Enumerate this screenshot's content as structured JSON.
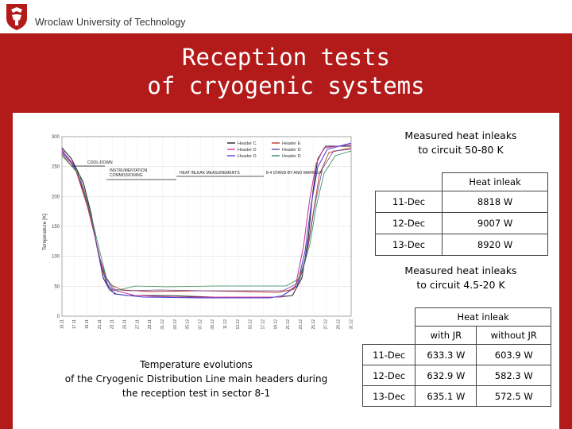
{
  "header": {
    "university": "Wroclaw University of Technology"
  },
  "title_lines": [
    "Reception tests",
    "of cryogenic systems"
  ],
  "chart": {
    "ylabel": "Temperature [K]",
    "yticks": [
      "300",
      "250",
      "200",
      "150",
      "100",
      "50",
      "0"
    ],
    "xticks": [
      "15.11",
      "17.11",
      "19.11",
      "21.11",
      "23.11",
      "25.11",
      "27.11",
      "29.11",
      "01.12",
      "03.12",
      "05.12",
      "07.12",
      "09.12",
      "11.12",
      "13.12",
      "15.12",
      "17.12",
      "19.12",
      "21.12",
      "23.12",
      "25.12",
      "27.12",
      "29.12",
      "31.12"
    ],
    "legend": [
      "Header C",
      "Header D",
      "Header D",
      "Header E",
      "Header D",
      "Header D"
    ],
    "phases": [
      "COOL-DOWN",
      "INSTRUMENTATION COMMISSIONING",
      "HEAT INLEAK MEASUREMENTS",
      "8-4 STAND-BY AND WARM-UP"
    ],
    "colors": {
      "c": "#222222",
      "d1": "#d23b9a",
      "d2": "#4a4ad8",
      "e": "#c0392b",
      "f": "#6b4a9a",
      "g": "#2e8b57"
    }
  },
  "caption_lines": [
    "Temperature evolutions",
    "of the Cryogenic Distribution Line main headers during",
    "the reception test in sector 8-1"
  ],
  "table1": {
    "title_lines": [
      "Measured heat inleaks",
      "to circuit 50-80 K"
    ],
    "header": "Heat inleak",
    "rows": [
      [
        "11-Dec",
        "8818 W"
      ],
      [
        "12-Dec",
        "9007 W"
      ],
      [
        "13-Dec",
        "8920 W"
      ]
    ]
  },
  "table2": {
    "title_lines": [
      "Measured heat inleaks",
      "to circuit 4.5-20 K"
    ],
    "header": "Heat inleak",
    "cols": [
      "with JR",
      "without JR"
    ],
    "rows": [
      [
        "11-Dec",
        "633.3 W",
        "603.9 W"
      ],
      [
        "12-Dec",
        "632.9 W",
        "582.3 W"
      ],
      [
        "13-Dec",
        "635.1 W",
        "572.5 W"
      ]
    ]
  }
}
